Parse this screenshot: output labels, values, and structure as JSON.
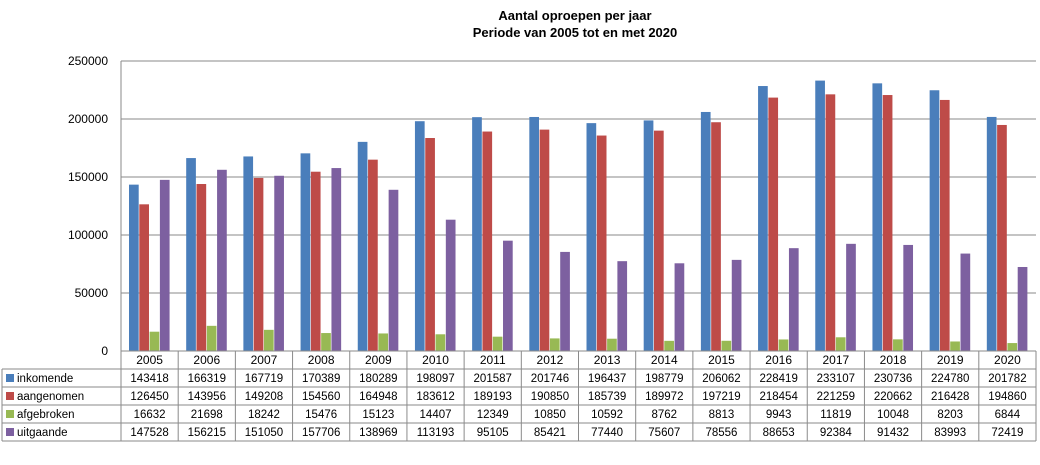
{
  "chart_data": {
    "type": "bar",
    "title": "Aantal oproepen per jaar",
    "subtitle": "Periode van 2005 tot en met 2020",
    "categories": [
      "2005",
      "2006",
      "2007",
      "2008",
      "2009",
      "2010",
      "2011",
      "2012",
      "2013",
      "2014",
      "2015",
      "2016",
      "2017",
      "2018",
      "2019",
      "2020"
    ],
    "ylim": [
      0,
      250000
    ],
    "yticks": [
      "0",
      "50000",
      "100000",
      "150000",
      "200000",
      "250000"
    ],
    "grid": true,
    "legend": "data-table",
    "series": [
      {
        "name": "inkomende",
        "color": "#4a7ebb",
        "values": [
          143418,
          166319,
          167719,
          170389,
          180289,
          198097,
          201587,
          201746,
          196437,
          198779,
          206062,
          228419,
          233107,
          230736,
          224780,
          201782
        ]
      },
      {
        "name": "aangenomen",
        "color": "#be4b48",
        "values": [
          126450,
          143956,
          149208,
          154560,
          164948,
          183612,
          189193,
          190850,
          185739,
          189972,
          197219,
          218454,
          221259,
          220662,
          216428,
          194860
        ]
      },
      {
        "name": "afgebroken",
        "color": "#98b954",
        "values": [
          16632,
          21698,
          18242,
          15476,
          15123,
          14407,
          12349,
          10850,
          10592,
          8762,
          8813,
          9943,
          11819,
          10048,
          8203,
          6844
        ]
      },
      {
        "name": "uitgaande",
        "color": "#7d60a0",
        "values": [
          147528,
          156215,
          151050,
          157706,
          138969,
          113193,
          95105,
          85421,
          77440,
          75607,
          78556,
          88653,
          92384,
          91432,
          83993,
          72419
        ]
      }
    ]
  }
}
